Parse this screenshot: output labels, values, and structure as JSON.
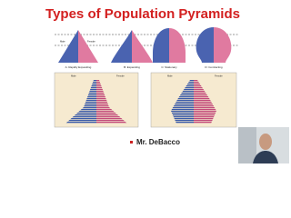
{
  "header": {
    "title": "Types of Population Pyramids"
  },
  "diagrams": [
    {
      "label": "A: Rapidly Expanding",
      "male": "Male",
      "female": "Female"
    },
    {
      "label": "B: Expanding"
    },
    {
      "label": "C: Stationary"
    },
    {
      "label": "D: Contracting"
    }
  ],
  "pyramids": [
    {
      "male": "Male",
      "female": "Female"
    },
    {
      "male": "Male",
      "female": "Female"
    }
  ],
  "presenter": "Mr. DeBacco"
}
